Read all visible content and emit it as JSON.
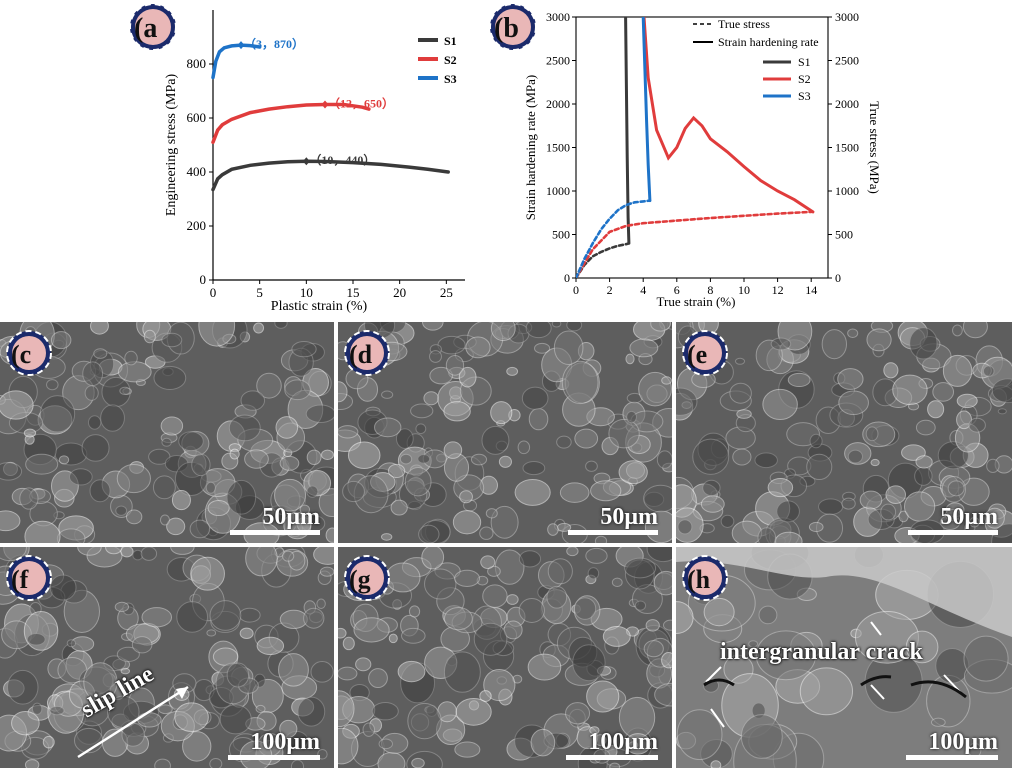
{
  "chart_data": [
    {
      "panel": "(a",
      "type": "line",
      "xlabel": "Plastic strain (%)",
      "ylabel": "Engineering stress (MPa)",
      "xlim": [
        0,
        27
      ],
      "ylim": [
        0,
        1000
      ],
      "xticks": [
        "0",
        "5",
        "10",
        "15",
        "20",
        "25"
      ],
      "yticks": [
        "0",
        "200",
        "400",
        "600",
        "800"
      ],
      "legend": "top-right",
      "series": [
        {
          "name": "S1",
          "color": "#3a3a3a",
          "x": [
            0,
            0.5,
            1,
            2,
            4,
            6,
            8,
            10,
            12,
            15,
            18,
            21,
            23,
            25.2
          ],
          "y": [
            335,
            375,
            390,
            410,
            425,
            433,
            438,
            440,
            439,
            435,
            428,
            418,
            410,
            400
          ]
        },
        {
          "name": "S2",
          "color": "#e03c3c",
          "x": [
            0,
            0.5,
            1,
            2,
            4,
            6,
            8,
            10,
            12,
            14,
            16,
            16.7
          ],
          "y": [
            510,
            555,
            575,
            595,
            620,
            633,
            642,
            648,
            650,
            650,
            640,
            633
          ]
        },
        {
          "name": "S3",
          "color": "#1e73c8",
          "x": [
            0,
            0.3,
            0.7,
            1.2,
            2,
            3,
            4,
            5
          ],
          "y": [
            750,
            810,
            845,
            860,
            867,
            870,
            868,
            863
          ]
        }
      ],
      "annotations": [
        {
          "text": "（3，870）",
          "x": 3,
          "y": 870,
          "color": "#1e73c8"
        },
        {
          "text": "（12，650）",
          "x": 12,
          "y": 650,
          "color": "#e03c3c"
        },
        {
          "text": "（10，440）",
          "x": 10,
          "y": 440,
          "color": "#3a3a3a"
        }
      ]
    },
    {
      "panel": "(b",
      "type": "line",
      "xlabel": "True strain (%)",
      "ylabel": "Strain hardening rate (MPa)",
      "ylabel_right": "True stress (MPa)",
      "xlim": [
        0,
        15
      ],
      "ylim": [
        0,
        3000
      ],
      "xticks": [
        "0",
        "2",
        "4",
        "6",
        "8",
        "10",
        "12",
        "14"
      ],
      "yticks": [
        "0",
        "500",
        "1000",
        "1500",
        "2000",
        "2500",
        "3000"
      ],
      "legend": "top-right",
      "legend_styles": [
        "True stress",
        "Strain hardening rate"
      ],
      "series": [
        {
          "name": "S1",
          "color": "#3a3a3a",
          "dash": true,
          "x": [
            0,
            0.5,
            1,
            1.5,
            2,
            2.5,
            3,
            3.1
          ],
          "y": [
            0,
            150,
            250,
            300,
            340,
            370,
            390,
            395
          ]
        },
        {
          "name": "S1",
          "color": "#3a3a3a",
          "dash": false,
          "x": [
            2.95,
            3.0,
            3.05,
            3.1,
            3.15
          ],
          "y": [
            3000,
            2200,
            1400,
            700,
            400
          ]
        },
        {
          "name": "S2",
          "color": "#e03c3c",
          "dash": true,
          "x": [
            0,
            0.5,
            1,
            2,
            3,
            4,
            6,
            8,
            10,
            12,
            14
          ],
          "y": [
            0,
            170,
            330,
            530,
            600,
            630,
            660,
            690,
            715,
            740,
            760
          ]
        },
        {
          "name": "S2",
          "color": "#e03c3c",
          "dash": false,
          "x": [
            4.05,
            4.3,
            4.8,
            5.5,
            6,
            6.5,
            7,
            7.5,
            8,
            9,
            10,
            11,
            12,
            13,
            14.1
          ],
          "y": [
            3000,
            2300,
            1700,
            1380,
            1500,
            1720,
            1840,
            1750,
            1600,
            1450,
            1280,
            1120,
            1000,
            900,
            760
          ]
        },
        {
          "name": "S3",
          "color": "#1e73c8",
          "dash": true,
          "x": [
            0,
            0.5,
            1,
            1.5,
            2,
            2.5,
            3,
            3.5,
            4,
            4.4
          ],
          "y": [
            0,
            220,
            400,
            560,
            680,
            780,
            840,
            870,
            880,
            890
          ]
        },
        {
          "name": "S3",
          "color": "#1e73c8",
          "dash": false,
          "x": [
            4.0,
            4.1,
            4.2,
            4.3,
            4.4
          ],
          "y": [
            3000,
            2400,
            1800,
            1300,
            890
          ]
        }
      ]
    }
  ],
  "panels": {
    "c": {
      "label": "(c",
      "scale": "50μm"
    },
    "d": {
      "label": "(d",
      "scale": "50μm"
    },
    "e": {
      "label": "(e",
      "scale": "50μm"
    },
    "f": {
      "label": "(f",
      "scale": "100μm",
      "annotation": "slip line"
    },
    "g": {
      "label": "(g",
      "scale": "100μm"
    },
    "h": {
      "label": "(h",
      "scale": "100μm",
      "annotation": "intergranular crack"
    }
  },
  "colors": {
    "badge_fill": "#e9b7b7",
    "badge_ring": "#1b2a6b",
    "sem_dark": "#555",
    "sem_light": "#9a9a9a"
  }
}
